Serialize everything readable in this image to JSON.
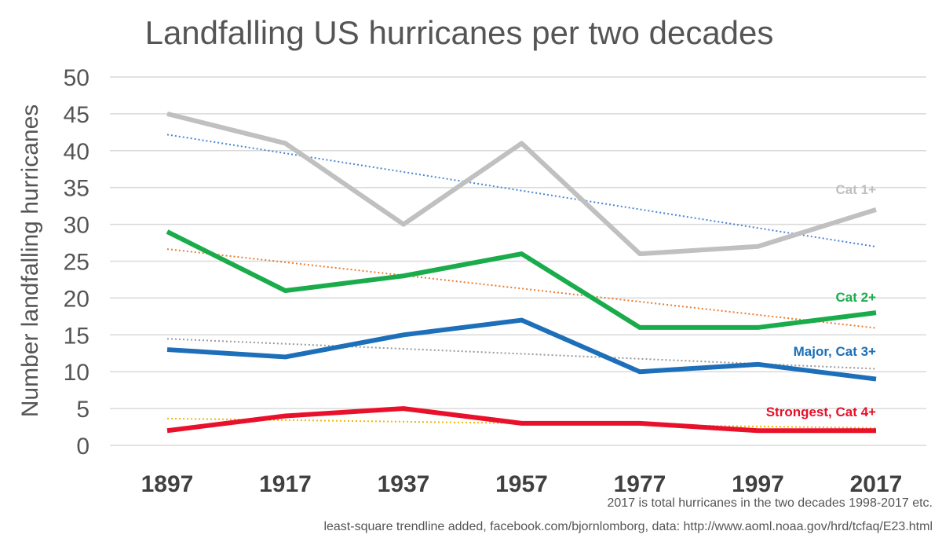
{
  "chart_data": {
    "type": "line",
    "title": "Landfalling US hurricanes per two decades",
    "ylabel": "Number landfalling hurricanes",
    "xlabel": "",
    "ylim": [
      0,
      50
    ],
    "yticks": [
      0,
      5,
      10,
      15,
      20,
      25,
      30,
      35,
      40,
      45,
      50
    ],
    "grid": true,
    "legend": "none",
    "categories": [
      "1897",
      "1917",
      "1937",
      "1957",
      "1977",
      "1997",
      "2017"
    ],
    "series": [
      {
        "name": "Cat 1+",
        "color": "#c0c0c0",
        "trend_color": "#4a86d6",
        "values": [
          45,
          41,
          30,
          41,
          26,
          27,
          32
        ]
      },
      {
        "name": "Cat 2+",
        "color": "#1aac4b",
        "trend_color": "#ea7c32",
        "values": [
          29,
          21,
          23,
          26,
          16,
          16,
          18
        ]
      },
      {
        "name": "Major, Cat 3+",
        "color": "#1c6fb8",
        "trend_color": "#9a9a9a",
        "values": [
          13,
          12,
          15,
          17,
          10,
          11,
          9
        ]
      },
      {
        "name": "Strongest, Cat 4+",
        "color": "#e8102a",
        "trend_color": "#f2b800",
        "values": [
          2,
          4,
          5,
          3,
          3,
          2,
          2
        ]
      }
    ]
  },
  "notes": {
    "line1": "2017 is total hurricanes in the two decades 1998-2017 etc.",
    "line2": "least-square trendline added, facebook.com/bjornlomborg, data: http://www.aoml.noaa.gov/hrd/tcfaq/E23.html"
  }
}
